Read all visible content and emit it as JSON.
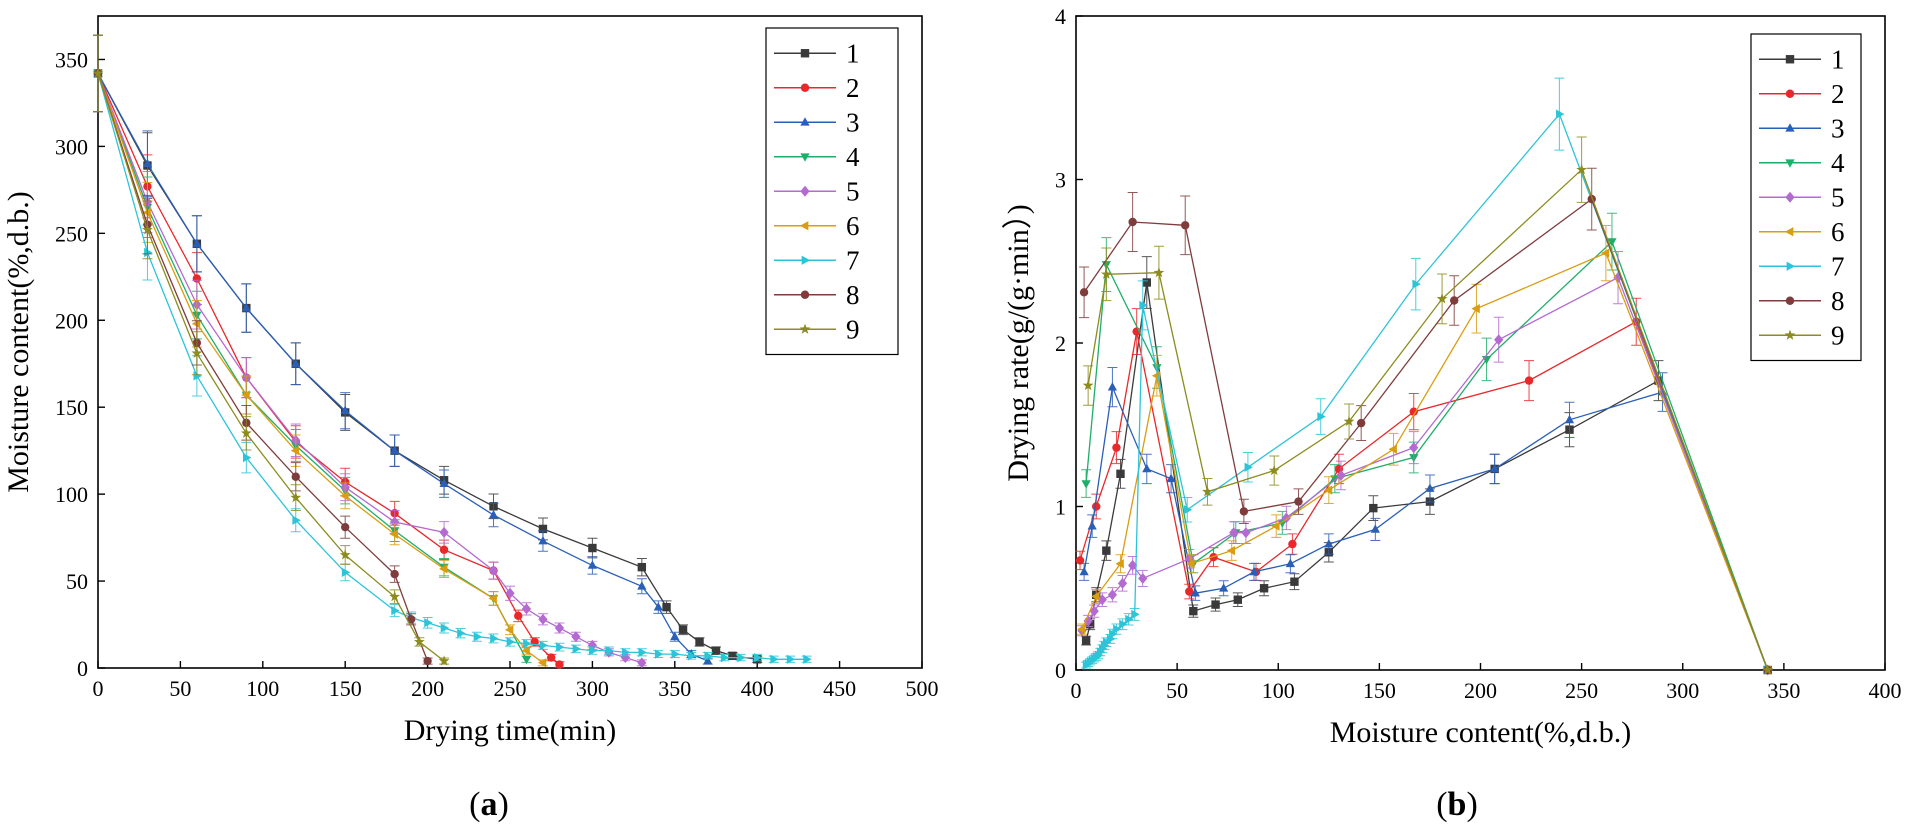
{
  "figure": {
    "panel_a_label": "a",
    "panel_b_label": "b"
  },
  "chart_data": [
    {
      "id": "a",
      "type": "line",
      "title": "",
      "xlabel": "Drying time(min)",
      "ylabel": "Moisture content(%,d.b.)",
      "xlim": [
        0,
        500
      ],
      "ylim": [
        0,
        375
      ],
      "xticks": [
        0,
        50,
        100,
        150,
        200,
        250,
        300,
        350,
        400,
        450,
        500
      ],
      "yticks": [
        0,
        50,
        100,
        150,
        200,
        250,
        300,
        350
      ],
      "grid": false,
      "legend_position": "top-right",
      "series": [
        {
          "name": "1",
          "color": "#3a3a3a",
          "marker": "square",
          "x": [
            0,
            30,
            60,
            90,
            120,
            150,
            180,
            210,
            240,
            270,
            300,
            330,
            345,
            355,
            365,
            375,
            385,
            400
          ],
          "y": [
            342,
            289,
            244,
            207,
            175,
            147,
            125,
            108,
            93,
            80,
            69,
            58,
            35,
            22,
            15,
            10,
            7,
            5
          ]
        },
        {
          "name": "2",
          "color": "#e8282b",
          "marker": "circle",
          "x": [
            0,
            30,
            60,
            90,
            120,
            150,
            180,
            210,
            240,
            255,
            265,
            275,
            280
          ],
          "y": [
            342,
            277,
            224,
            167,
            130,
            107,
            89,
            68,
            56,
            30,
            15,
            6,
            2
          ]
        },
        {
          "name": "3",
          "color": "#2a5fb8",
          "marker": "triangle-up",
          "x": [
            0,
            30,
            60,
            90,
            120,
            150,
            180,
            210,
            240,
            270,
            300,
            330,
            340,
            350,
            360,
            370
          ],
          "y": [
            342,
            290,
            244,
            207,
            175,
            148,
            125,
            106,
            88,
            73,
            59,
            47,
            35,
            18,
            8,
            4
          ]
        },
        {
          "name": "4",
          "color": "#1fae6a",
          "marker": "triangle-down",
          "x": [
            0,
            30,
            60,
            90,
            120,
            150,
            180,
            210,
            240,
            260
          ],
          "y": [
            342,
            265,
            203,
            157,
            128,
            102,
            79,
            58,
            40,
            5
          ]
        },
        {
          "name": "5",
          "color": "#b36ad1",
          "marker": "diamond",
          "x": [
            0,
            30,
            60,
            90,
            120,
            150,
            180,
            210,
            240,
            250,
            260,
            270,
            280,
            290,
            300,
            310,
            320,
            330
          ],
          "y": [
            342,
            268,
            209,
            167,
            131,
            104,
            84,
            78,
            56,
            43,
            34,
            28,
            23,
            18,
            13,
            9,
            6,
            3
          ]
        },
        {
          "name": "6",
          "color": "#d99d12",
          "marker": "triangle-left",
          "x": [
            0,
            30,
            60,
            90,
            120,
            150,
            180,
            210,
            240,
            250,
            260,
            270
          ],
          "y": [
            342,
            262,
            198,
            157,
            125,
            99,
            77,
            57,
            40,
            22,
            10,
            3
          ]
        },
        {
          "name": "7",
          "color": "#2ec4d8",
          "marker": "triangle-right",
          "x": [
            0,
            30,
            60,
            90,
            120,
            150,
            180,
            190,
            200,
            210,
            220,
            230,
            240,
            250,
            260,
            270,
            280,
            290,
            300,
            310,
            320,
            330,
            340,
            350,
            360,
            370,
            380,
            390,
            400,
            410,
            420,
            430
          ],
          "y": [
            342,
            239,
            168,
            121,
            85,
            55,
            33,
            29,
            26,
            23,
            20,
            18,
            17,
            15,
            14,
            13,
            12,
            11,
            10,
            10,
            9,
            9,
            8,
            8,
            7,
            7,
            6,
            6,
            6,
            5,
            5,
            5
          ]
        },
        {
          "name": "8",
          "color": "#7f3c3c",
          "marker": "circle",
          "x": [
            0,
            30,
            60,
            90,
            120,
            150,
            180,
            190,
            200
          ],
          "y": [
            342,
            255,
            187,
            141,
            110,
            81,
            54,
            28,
            4
          ]
        },
        {
          "name": "9",
          "color": "#8c8c1e",
          "marker": "star",
          "x": [
            0,
            30,
            60,
            90,
            120,
            150,
            180,
            195,
            210
          ],
          "y": [
            342,
            252,
            181,
            135,
            98,
            65,
            41,
            15,
            4
          ]
        }
      ]
    },
    {
      "id": "b",
      "type": "line",
      "title": "",
      "xlabel": "Moisture content(%,d.b.)",
      "ylabel": "Drying rate(g/(g·min）)",
      "xlim": [
        0,
        400
      ],
      "ylim": [
        0,
        4
      ],
      "xticks": [
        0,
        50,
        100,
        150,
        200,
        250,
        300,
        350,
        400
      ],
      "yticks": [
        0,
        1,
        2,
        3,
        4
      ],
      "grid": false,
      "legend_position": "top-right",
      "series": [
        {
          "name": "1",
          "color": "#3a3a3a",
          "marker": "square",
          "x": [
            342,
            288,
            244,
            207,
            175,
            147,
            125,
            108,
            93,
            80,
            69,
            58,
            35,
            22,
            15,
            10,
            7,
            5
          ],
          "y": [
            0,
            1.77,
            1.47,
            1.23,
            1.03,
            0.99,
            0.72,
            0.54,
            0.5,
            0.43,
            0.4,
            0.36,
            2.37,
            1.2,
            0.73,
            0.46,
            0.28,
            0.18
          ]
        },
        {
          "name": "2",
          "color": "#e8282b",
          "marker": "circle",
          "x": [
            342,
            277,
            224,
            167,
            130,
            107,
            89,
            68,
            56,
            30,
            20,
            10,
            2
          ],
          "y": [
            0,
            2.13,
            1.77,
            1.58,
            1.23,
            0.77,
            0.6,
            0.69,
            0.48,
            2.07,
            1.36,
            1.0,
            0.67
          ]
        },
        {
          "name": "3",
          "color": "#2a5fb8",
          "marker": "triangle-up",
          "x": [
            342,
            290,
            244,
            207,
            175,
            148,
            125,
            106,
            88,
            73,
            59,
            47,
            35,
            18,
            8,
            4
          ],
          "y": [
            0,
            1.7,
            1.53,
            1.23,
            1.11,
            0.86,
            0.77,
            0.65,
            0.6,
            0.5,
            0.47,
            1.17,
            1.23,
            1.73,
            0.88,
            0.6
          ]
        },
        {
          "name": "4",
          "color": "#1fae6a",
          "marker": "triangle-down",
          "x": [
            342,
            265,
            203,
            167,
            128,
            102,
            79,
            58,
            40,
            15,
            5
          ],
          "y": [
            0,
            2.62,
            1.9,
            1.3,
            1.17,
            0.9,
            0.84,
            0.65,
            1.85,
            2.48,
            1.14
          ]
        },
        {
          "name": "5",
          "color": "#b36ad1",
          "marker": "diamond",
          "x": [
            342,
            268,
            209,
            167,
            131,
            104,
            84,
            78,
            56,
            33,
            28,
            23,
            18,
            13,
            9,
            6,
            3
          ],
          "y": [
            0,
            2.4,
            2.02,
            1.36,
            1.19,
            0.93,
            0.84,
            0.84,
            0.68,
            0.56,
            0.64,
            0.53,
            0.46,
            0.43,
            0.36,
            0.3,
            0.24
          ]
        },
        {
          "name": "6",
          "color": "#d99d12",
          "marker": "triangle-left",
          "x": [
            342,
            262,
            198,
            157,
            125,
            99,
            77,
            57,
            40,
            22,
            10,
            3
          ],
          "y": [
            0,
            2.55,
            2.21,
            1.35,
            1.1,
            0.88,
            0.73,
            0.65,
            1.8,
            0.65,
            0.45,
            0.25
          ]
        },
        {
          "name": "7",
          "color": "#2ec4d8",
          "marker": "triangle-right",
          "x": [
            342,
            239,
            168,
            121,
            85,
            55,
            33,
            29,
            26,
            23,
            20,
            18,
            17,
            15,
            14,
            13,
            12,
            11,
            10,
            9,
            8,
            7,
            6,
            5
          ],
          "y": [
            0,
            3.4,
            2.36,
            1.55,
            1.24,
            0.98,
            2.23,
            0.34,
            0.31,
            0.28,
            0.25,
            0.22,
            0.19,
            0.17,
            0.15,
            0.13,
            0.11,
            0.09,
            0.08,
            0.07,
            0.06,
            0.05,
            0.04,
            0.03
          ]
        },
        {
          "name": "8",
          "color": "#7f3c3c",
          "marker": "circle",
          "x": [
            342,
            255,
            187,
            141,
            110,
            83,
            54,
            28,
            4
          ],
          "y": [
            0,
            2.88,
            2.26,
            1.51,
            1.03,
            0.97,
            2.72,
            2.74,
            2.31
          ]
        },
        {
          "name": "9",
          "color": "#8c8c1e",
          "marker": "star",
          "x": [
            342,
            250,
            181,
            135,
            98,
            65,
            41,
            15,
            6
          ],
          "y": [
            0,
            3.06,
            2.27,
            1.52,
            1.22,
            1.09,
            2.43,
            2.42,
            1.74
          ]
        }
      ]
    }
  ]
}
